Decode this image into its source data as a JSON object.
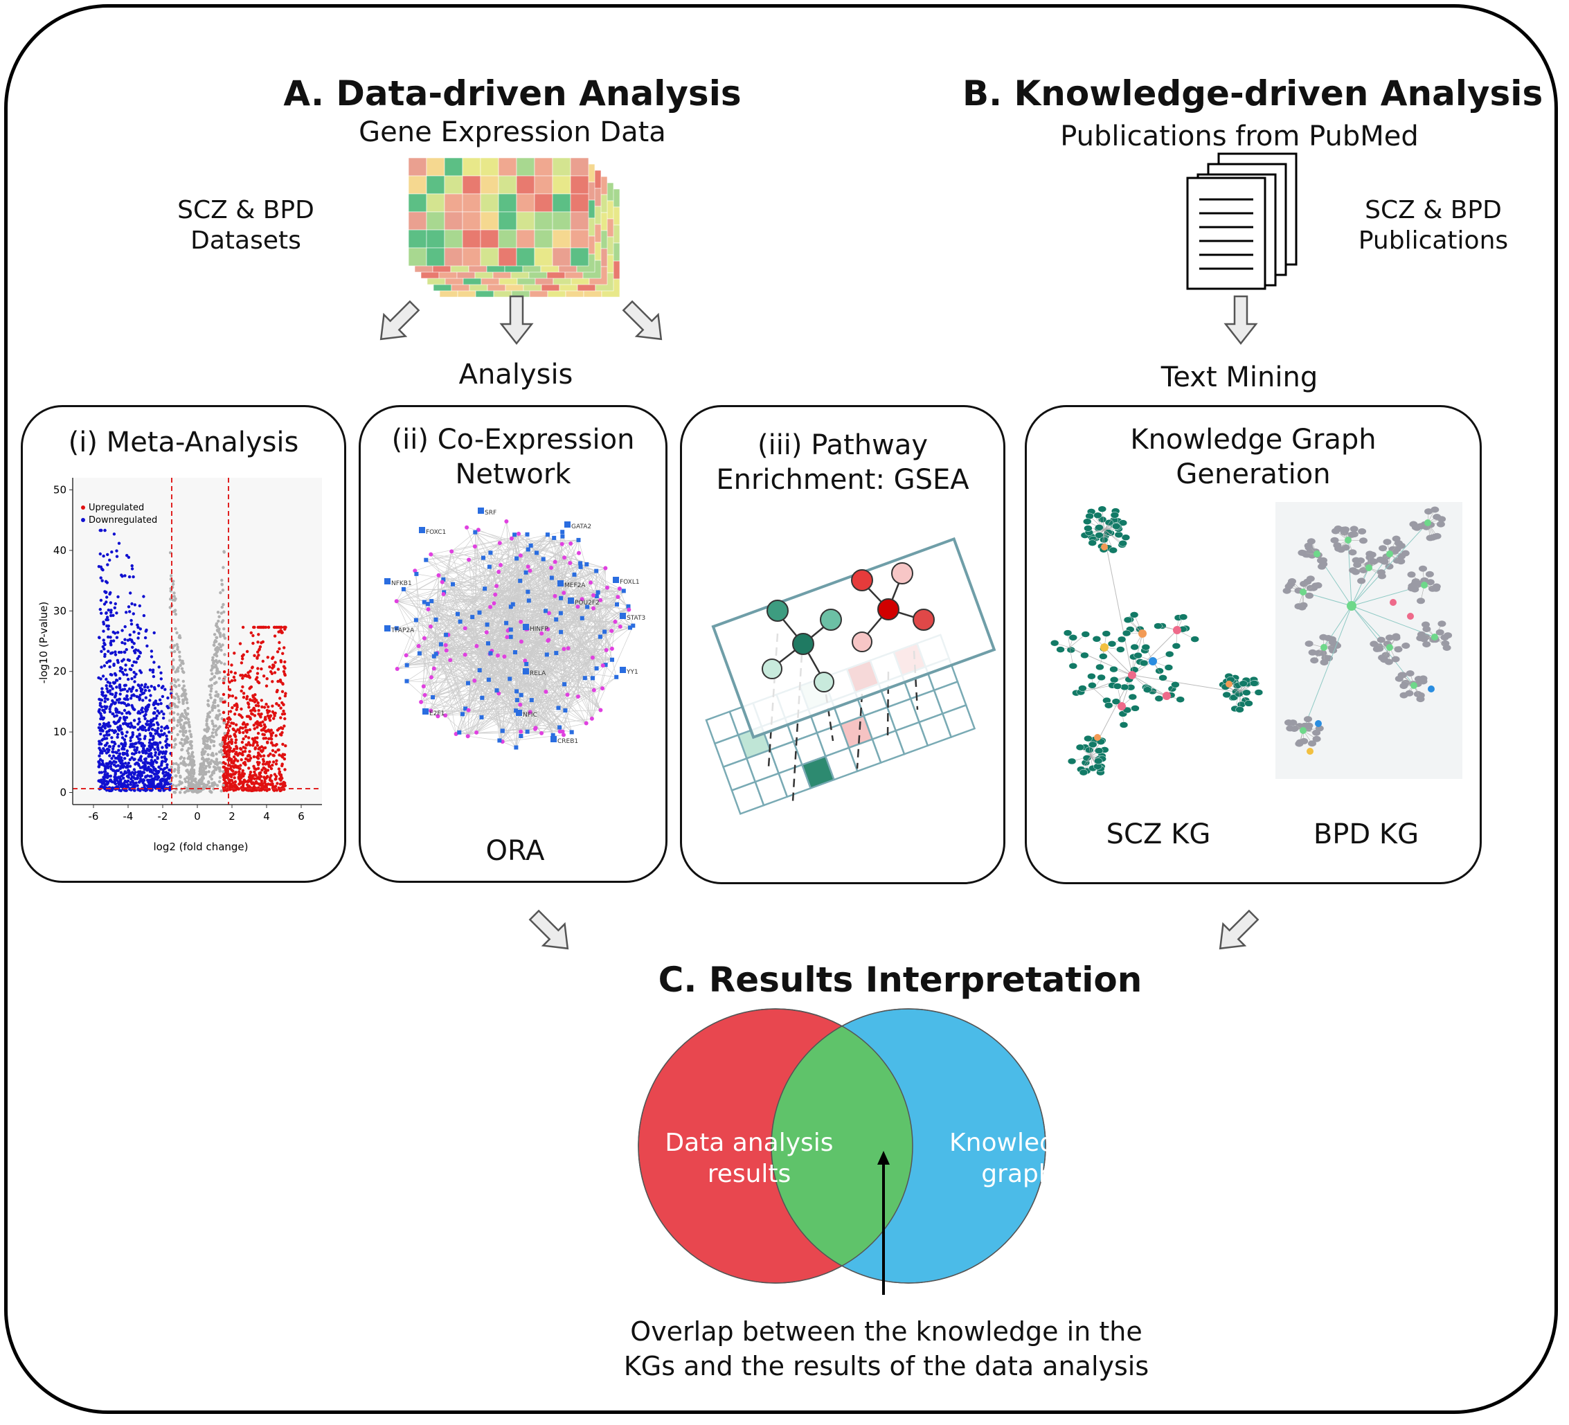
{
  "section_a": {
    "title": "A. Data-driven Analysis",
    "subtitle": "Gene Expression Data",
    "datasets_line1": "SCZ & BPD",
    "datasets_line2": "Datasets",
    "analysis_label": "Analysis"
  },
  "section_b": {
    "title": "B. Knowledge-driven Analysis",
    "subtitle": "Publications from PubMed",
    "pubs_line1": "SCZ & BPD",
    "pubs_line2": "Publications",
    "text_mining_label": "Text Mining"
  },
  "panels": {
    "meta": {
      "title": "(i) Meta-Analysis",
      "legend_up": "Upregulated",
      "legend_down": "Downregulated",
      "xlabel": "log2 (fold change)",
      "ylabel": "-log10 (P-value)",
      "x_ticks": [
        "-6",
        "-4",
        "-2",
        "0",
        "2",
        "4",
        "6"
      ],
      "y_ticks": [
        "0",
        "10",
        "20",
        "30",
        "40",
        "50"
      ]
    },
    "coexp": {
      "title_line1": "(ii) Co-Expression",
      "title_line2": "Network",
      "ora_label": "ORA",
      "gene_labels": [
        "SRF",
        "GATA2",
        "FOXC1",
        "NFKB1",
        "MEF2A",
        "FOXL1",
        "POU2F2",
        "STAT3",
        "TFAP2A",
        "HINFP",
        "YY1",
        "RELA",
        "E2F1",
        "NFIC",
        "CREB1"
      ]
    },
    "pathway": {
      "title_line1": "(iii) Pathway",
      "title_line2": "Enrichment: GSEA"
    },
    "kg": {
      "title_line1": "Knowledge Graph",
      "title_line2": "Generation",
      "scz_label": "SCZ KG",
      "bpd_label": "BPD KG"
    }
  },
  "section_c": {
    "title": "C. Results Interpretation",
    "left_line1": "Data analysis",
    "left_line2": "results",
    "right_line1": "Knowledge",
    "right_line2": "graph",
    "caption_line1": "Overlap between the knowledge in the",
    "caption_line2": "KGs and the results of the data analysis"
  },
  "colors": {
    "venn_left": "#e8474f",
    "venn_right": "#4bbbe8",
    "venn_overlap": "#5fc36a",
    "upregulated": "#e01010",
    "downregulated": "#1010d0",
    "not_significant": "#b0b0b0",
    "kg_teal": "#127a66",
    "network_pink": "#e040e0",
    "network_blue": "#2a6de0"
  }
}
